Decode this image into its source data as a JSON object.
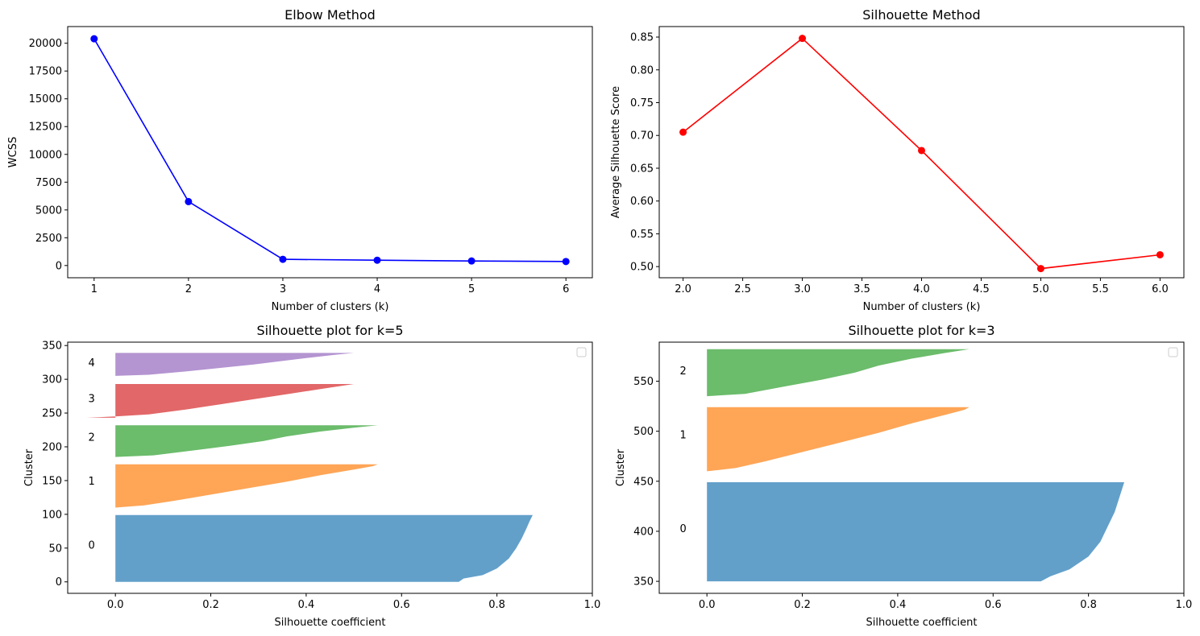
{
  "chart_data": [
    {
      "id": "elbow",
      "type": "line",
      "title": "Elbow Method",
      "xlabel": "Number of clusters (k)",
      "ylabel": "WCSS",
      "x": [
        1,
        2,
        3,
        4,
        5,
        6
      ],
      "y": [
        20400,
        5750,
        560,
        480,
        410,
        360
      ],
      "xlim": [
        0.72,
        6.28
      ],
      "ylim": [
        -1100,
        21500
      ],
      "xticks": [
        1,
        2,
        3,
        4,
        5,
        6
      ],
      "xtick_labels": [
        "1",
        "2",
        "3",
        "4",
        "5",
        "6"
      ],
      "yticks": [
        0,
        2500,
        5000,
        7500,
        10000,
        12500,
        15000,
        17500,
        20000
      ],
      "ytick_labels": [
        "0",
        "2500",
        "5000",
        "7500",
        "10000",
        "12500",
        "15000",
        "17500",
        "20000"
      ],
      "color": "#0000ff",
      "marker": "circle"
    },
    {
      "id": "silhouette-method",
      "type": "line",
      "title": "Silhouette Method",
      "xlabel": "Number of clusters (k)",
      "ylabel": "Average Silhouette Score",
      "x": [
        2,
        3,
        4,
        5,
        6
      ],
      "y": [
        0.705,
        0.848,
        0.677,
        0.497,
        0.518
      ],
      "xlim": [
        1.8,
        6.2
      ],
      "ylim": [
        0.483,
        0.866
      ],
      "xticks": [
        2.0,
        2.5,
        3.0,
        3.5,
        4.0,
        4.5,
        5.0,
        5.5,
        6.0
      ],
      "xtick_labels": [
        "2.0",
        "2.5",
        "3.0",
        "3.5",
        "4.0",
        "4.5",
        "5.0",
        "5.5",
        "6.0"
      ],
      "yticks": [
        0.5,
        0.55,
        0.6,
        0.65,
        0.7,
        0.75,
        0.8,
        0.85
      ],
      "ytick_labels": [
        "0.50",
        "0.55",
        "0.60",
        "0.65",
        "0.70",
        "0.75",
        "0.80",
        "0.85"
      ],
      "color": "#ff0000",
      "marker": "circle"
    },
    {
      "id": "silhouette-k5",
      "type": "area",
      "title": "Silhouette plot for k=5",
      "xlabel": "Silhouette coefficient",
      "ylabel": "Cluster",
      "xlim": [
        -0.1,
        1.0
      ],
      "ylim": [
        -17,
        355
      ],
      "xticks": [
        0.0,
        0.2,
        0.4,
        0.6,
        0.8,
        1.0
      ],
      "xtick_labels": [
        "0.0",
        "0.2",
        "0.4",
        "0.6",
        "0.8",
        "1.0"
      ],
      "yticks": [
        0,
        50,
        100,
        150,
        200,
        250,
        300,
        350
      ],
      "ytick_labels": [
        "0",
        "50",
        "100",
        "150",
        "200",
        "250",
        "300",
        "350"
      ],
      "legend": "top-right (empty)",
      "clusters": [
        {
          "label": "0",
          "color": "#1f77b4",
          "y_start": 0,
          "y_end": 99,
          "label_y": 55,
          "min_coef": 0.72,
          "max_coef": 0.875,
          "profile": [
            [
              0.0,
              0.72
            ],
            [
              0.05,
              0.73
            ],
            [
              0.1,
              0.77
            ],
            [
              0.2,
              0.8
            ],
            [
              0.35,
              0.825
            ],
            [
              0.5,
              0.84
            ],
            [
              0.65,
              0.852
            ],
            [
              0.8,
              0.862
            ],
            [
              0.9,
              0.868
            ],
            [
              1.0,
              0.875
            ]
          ]
        },
        {
          "label": "1",
          "color": "#ff7f0e",
          "y_start": 110,
          "y_end": 174,
          "label_y": 150,
          "min_coef": 0.0,
          "max_coef": 0.55,
          "profile": [
            [
              0.0,
              0.0
            ],
            [
              0.05,
              0.06
            ],
            [
              0.15,
              0.12
            ],
            [
              0.3,
              0.2
            ],
            [
              0.45,
              0.28
            ],
            [
              0.6,
              0.36
            ],
            [
              0.75,
              0.43
            ],
            [
              0.88,
              0.5
            ],
            [
              0.96,
              0.54
            ],
            [
              1.0,
              0.55
            ]
          ]
        },
        {
          "label": "2",
          "color": "#2ca02c",
          "y_start": 185,
          "y_end": 232,
          "label_y": 215,
          "min_coef": 0.0,
          "max_coef": 0.55,
          "profile": [
            [
              0.0,
              0.0
            ],
            [
              0.05,
              0.08
            ],
            [
              0.2,
              0.16
            ],
            [
              0.35,
              0.24
            ],
            [
              0.5,
              0.31
            ],
            [
              0.65,
              0.36
            ],
            [
              0.8,
              0.43
            ],
            [
              0.92,
              0.5
            ],
            [
              1.0,
              0.55
            ]
          ]
        },
        {
          "label": "3",
          "color": "#d62728",
          "y_start": 243,
          "y_end": 293,
          "label_y": 272,
          "min_coef": -0.06,
          "max_coef": 0.5,
          "profile": [
            [
              0.0,
              -0.06
            ],
            [
              0.04,
              0.0
            ],
            [
              0.1,
              0.07
            ],
            [
              0.25,
              0.15
            ],
            [
              0.4,
              0.22
            ],
            [
              0.55,
              0.29
            ],
            [
              0.7,
              0.36
            ],
            [
              0.85,
              0.43
            ],
            [
              1.0,
              0.5
            ]
          ]
        },
        {
          "label": "4",
          "color": "#9467bd",
          "y_start": 305,
          "y_end": 339,
          "label_y": 325,
          "min_coef": 0.0,
          "max_coef": 0.5,
          "profile": [
            [
              0.0,
              0.0
            ],
            [
              0.05,
              0.07
            ],
            [
              0.2,
              0.15
            ],
            [
              0.35,
              0.22
            ],
            [
              0.5,
              0.29
            ],
            [
              0.65,
              0.35
            ],
            [
              0.8,
              0.41
            ],
            [
              0.92,
              0.46
            ],
            [
              1.0,
              0.5
            ]
          ]
        }
      ]
    },
    {
      "id": "silhouette-k3",
      "type": "area",
      "title": "Silhouette plot for k=3",
      "xlabel": "Silhouette coefficient",
      "ylabel": "Cluster",
      "xlim": [
        -0.1,
        1.0
      ],
      "ylim": [
        338,
        589
      ],
      "xticks": [
        0.0,
        0.2,
        0.4,
        0.6,
        0.8,
        1.0
      ],
      "xtick_labels": [
        "0.0",
        "0.2",
        "0.4",
        "0.6",
        "0.8",
        "1.0"
      ],
      "yticks": [
        350,
        400,
        450,
        500,
        550
      ],
      "ytick_labels": [
        "350",
        "400",
        "450",
        "500",
        "550"
      ],
      "legend": "top-right (empty)",
      "clusters": [
        {
          "label": "0",
          "color": "#1f77b4",
          "y_start": 350,
          "y_end": 449,
          "label_y": 403,
          "min_coef": 0.7,
          "max_coef": 0.875,
          "profile": [
            [
              0.0,
              0.7
            ],
            [
              0.05,
              0.72
            ],
            [
              0.12,
              0.76
            ],
            [
              0.25,
              0.8
            ],
            [
              0.4,
              0.825
            ],
            [
              0.55,
              0.84
            ],
            [
              0.7,
              0.855
            ],
            [
              0.85,
              0.865
            ],
            [
              1.0,
              0.875
            ]
          ]
        },
        {
          "label": "1",
          "color": "#ff7f0e",
          "y_start": 460,
          "y_end": 524,
          "label_y": 497,
          "min_coef": 0.0,
          "max_coef": 0.55,
          "profile": [
            [
              0.0,
              0.0
            ],
            [
              0.05,
              0.06
            ],
            [
              0.15,
              0.12
            ],
            [
              0.3,
              0.2
            ],
            [
              0.45,
              0.28
            ],
            [
              0.6,
              0.36
            ],
            [
              0.75,
              0.43
            ],
            [
              0.88,
              0.5
            ],
            [
              0.96,
              0.54
            ],
            [
              1.0,
              0.55
            ]
          ]
        },
        {
          "label": "2",
          "color": "#2ca02c",
          "y_start": 535,
          "y_end": 582,
          "label_y": 561,
          "min_coef": 0.0,
          "max_coef": 0.55,
          "profile": [
            [
              0.0,
              0.0
            ],
            [
              0.05,
              0.08
            ],
            [
              0.2,
              0.16
            ],
            [
              0.35,
              0.24
            ],
            [
              0.5,
              0.31
            ],
            [
              0.65,
              0.36
            ],
            [
              0.8,
              0.43
            ],
            [
              0.92,
              0.5
            ],
            [
              1.0,
              0.55
            ]
          ]
        }
      ]
    }
  ]
}
